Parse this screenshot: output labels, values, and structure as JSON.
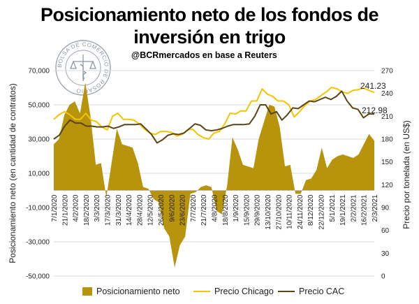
{
  "header": {
    "title_line1": "Posicionamiento neto de los fondos de",
    "title_line2": "inversión en trigo",
    "subtitle": "@BCRmercados en base a Reuters",
    "seal_text": "BOLSA DE COMERCIO DE ROSARIO"
  },
  "colors": {
    "area": "#b8930c",
    "chicago": "#f5c400",
    "cac": "#5a4412",
    "grid": "#d9d9d9"
  },
  "chart_data": {
    "type": "area",
    "title": "Posicionamiento neto de los fondos de inversión en trigo",
    "ylabel_left": "Posicionamiento neto (en cantidad de contratos)",
    "ylabel_right": "Precio por tonelada (en US$)",
    "ylim_left": [
      -50000,
      70000
    ],
    "ylim_right": [
      0,
      270
    ],
    "yticks_left": [
      "70,000",
      "50,000",
      "30,000",
      "10,000",
      "-10,000",
      "-30,000",
      "-50,000"
    ],
    "yticks_left_values": [
      70000,
      50000,
      30000,
      10000,
      -10000,
      -30000,
      -50000
    ],
    "yticks_right": [
      "270",
      "240",
      "210",
      "180",
      "150",
      "120",
      "90",
      "60",
      "30",
      "0"
    ],
    "yticks_right_values": [
      270,
      240,
      210,
      180,
      150,
      120,
      90,
      60,
      30,
      0
    ],
    "xticks": [
      "7/1/2020",
      "21/1/2020",
      "4/2/2020",
      "18/2/2020",
      "3/3/2020",
      "17/3/2020",
      "31/3/2020",
      "14/4/2020",
      "28/4/2020",
      "12/5/2020",
      "26/5/2020",
      "9/6/2020",
      "23/6/2020",
      "7/7/2020",
      "21/7/2020",
      "4/8/2020",
      "18/8/2020",
      "1/9/2020",
      "15/9/2020",
      "29/9/2020",
      "13/10/2020",
      "27/10/2020",
      "10/11/2020",
      "24/11/2020",
      "8/12/2020",
      "22/12/2020",
      "5/1/2021",
      "19/1/2021",
      "2/2/2021",
      "16/2/2021",
      "2/3/2021"
    ],
    "legend": [
      "Posicionamiento neto",
      "Precio Chicago",
      "Precio CAC"
    ],
    "series": [
      {
        "name": "Posicionamiento neto",
        "kind": "area",
        "values": [
          27000,
          30000,
          44000,
          50000,
          52000,
          45000,
          63000,
          43000,
          15000,
          16000,
          -4000,
          16000,
          36000,
          27000,
          26000,
          25000,
          16000,
          2000,
          1000,
          -5000,
          -7000,
          -22000,
          -27000,
          -45000,
          -32000,
          -27000,
          -2000,
          -1000,
          2000,
          3000,
          2000,
          -12000,
          -14000,
          3000,
          31000,
          24000,
          15000,
          14000,
          13000,
          30000,
          40000,
          50000,
          49000,
          37000,
          14000,
          15000,
          -2000,
          -2000,
          6000,
          7000,
          12000,
          25000,
          13000,
          18000,
          20000,
          21000,
          20000,
          19000,
          21000,
          27000,
          33000,
          29000
        ]
      },
      {
        "name": "Precio Chicago",
        "kind": "line",
        "values": [
          206,
          212,
          216,
          212,
          206,
          206,
          214,
          205,
          203,
          196,
          192,
          210,
          214,
          206,
          206,
          205,
          200,
          193,
          188,
          186,
          190,
          190,
          189,
          184,
          186,
          192,
          193,
          186,
          182,
          180,
          188,
          190,
          200,
          214,
          213,
          217,
          217,
          230,
          230,
          246,
          239,
          236,
          230,
          230,
          225,
          209,
          216,
          224,
          230,
          232,
          237,
          242,
          248,
          246,
          242,
          240,
          244,
          245,
          247,
          244,
          241.23
        ]
      },
      {
        "name": "Precio CAC",
        "kind": "line",
        "values": [
          180,
          185,
          197,
          205,
          201,
          201,
          197,
          197,
          196,
          196,
          197,
          194,
          196,
          199,
          199,
          199,
          200,
          193,
          186,
          175,
          179,
          185,
          187,
          186,
          188,
          194,
          200,
          198,
          192,
          191,
          192,
          194,
          197,
          199,
          199,
          199,
          200,
          210,
          225,
          225,
          213,
          216,
          205,
          212,
          221,
          220,
          225,
          230,
          229,
          232,
          235,
          232,
          236,
          243,
          230,
          221,
          219,
          208,
          213,
          212.98
        ]
      }
    ],
    "end_labels": {
      "chicago": "241.23",
      "cac": "212.98"
    },
    "grid": "horizontal",
    "legend_position": "bottom"
  }
}
